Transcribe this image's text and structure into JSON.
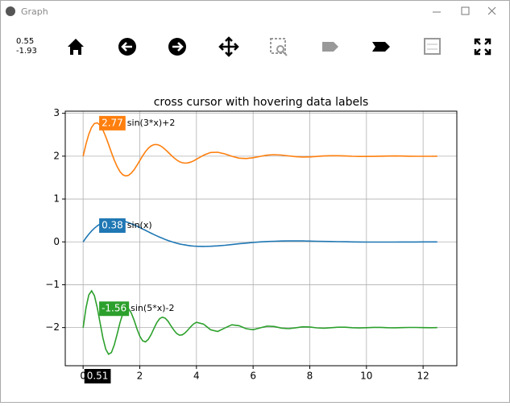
{
  "window": {
    "title": "Graph"
  },
  "status": {
    "x": "0.55",
    "y": "-1.93"
  },
  "chart_data": {
    "type": "line",
    "title": "cross cursor with hovering data labels",
    "x": [
      0,
      0.1,
      0.2,
      0.3,
      0.4,
      0.5,
      0.6,
      0.7,
      0.8,
      0.9,
      1,
      1.1,
      1.2,
      1.3,
      1.4,
      1.5,
      1.6,
      1.7,
      1.8,
      1.9,
      2,
      2.1,
      2.2,
      2.3,
      2.4,
      2.5,
      2.6,
      2.7,
      2.8,
      2.9,
      3,
      3.1,
      3.2,
      3.3,
      3.4,
      3.5,
      3.6,
      3.7,
      3.8,
      3.9,
      4,
      4.25,
      4.5,
      4.75,
      5,
      5.25,
      5.5,
      5.75,
      6,
      6.25,
      6.5,
      6.75,
      7,
      7.25,
      7.5,
      7.75,
      8,
      8.25,
      8.5,
      8.75,
      9,
      9.25,
      9.5,
      9.75,
      10,
      10.25,
      10.5,
      10.75,
      11,
      11.25,
      11.5,
      11.75,
      12,
      12.25,
      12.5
    ],
    "series": [
      {
        "name": "sin(x)",
        "color": "#1f77b4",
        "values": [
          0,
          0.095,
          0.18,
          0.254,
          0.319,
          0.373,
          0.418,
          0.454,
          0.481,
          0.499,
          0.51,
          0.514,
          0.511,
          0.503,
          0.489,
          0.471,
          0.449,
          0.424,
          0.396,
          0.366,
          0.335,
          0.302,
          0.269,
          0.236,
          0.203,
          0.171,
          0.14,
          0.111,
          0.083,
          0.056,
          0.031,
          0.009,
          -0.012,
          -0.03,
          -0.047,
          -0.061,
          -0.073,
          -0.083,
          -0.092,
          -0.098,
          -0.102,
          -0.107,
          -0.103,
          -0.093,
          -0.079,
          -0.062,
          -0.045,
          -0.029,
          -0.014,
          -0.001,
          0.008,
          0.015,
          0.02,
          0.022,
          0.022,
          0.021,
          0.018,
          0.015,
          0.011,
          0.008,
          0.005,
          0.002,
          -0.001,
          -0.002,
          -0.004,
          -0.004,
          -0.005,
          -0.004,
          -0.004,
          -0.003,
          -0.003,
          -0.002,
          -0.001,
          -0.001,
          0
        ]
      },
      {
        "name": "sin(3*x)+2",
        "color": "#ff7f0e",
        "values": [
          2,
          2.281,
          2.511,
          2.674,
          2.763,
          2.777,
          2.721,
          2.608,
          2.453,
          2.273,
          2.086,
          1.909,
          1.757,
          1.641,
          1.567,
          1.538,
          1.552,
          1.604,
          1.686,
          1.787,
          1.897,
          2.006,
          2.104,
          2.183,
          2.239,
          2.269,
          2.272,
          2.251,
          2.211,
          2.156,
          2.092,
          2.026,
          1.965,
          1.912,
          1.872,
          1.847,
          1.838,
          1.844,
          1.862,
          1.891,
          1.927,
          2.022,
          2.085,
          2.092,
          2.053,
          1.997,
          1.954,
          1.944,
          1.963,
          1.996,
          2.023,
          2.034,
          2.025,
          2.006,
          1.989,
          1.98,
          1.983,
          1.994,
          2.005,
          2.011,
          2.011,
          2.005,
          1.998,
          1.994,
          1.993,
          1.996,
          2,
          2.003,
          2.004,
          2.003,
          2,
          1.998,
          1.998,
          1.998,
          2
        ]
      },
      {
        "name": "sin(5*x)-2",
        "color": "#2ca02c",
        "values": [
          -2,
          -1.544,
          -1.239,
          -1.141,
          -1.256,
          -1.534,
          -1.895,
          -2.247,
          -2.507,
          -2.623,
          -2.582,
          -2.407,
          -2.153,
          -1.888,
          -1.674,
          -1.557,
          -1.555,
          -1.659,
          -1.832,
          -2.029,
          -2.2,
          -2.308,
          -2.333,
          -2.277,
          -2.162,
          -2.019,
          -1.885,
          -1.792,
          -1.756,
          -1.781,
          -1.855,
          -1.959,
          -2.058,
          -2.137,
          -2.176,
          -2.17,
          -2.124,
          -2.053,
          -1.978,
          -1.914,
          -1.876,
          -1.919,
          -2.051,
          -2.091,
          -2.011,
          -1.935,
          -1.955,
          -2.026,
          -2.049,
          -2.007,
          -1.966,
          -1.975,
          -2.013,
          -2.026,
          -2.005,
          -1.982,
          -1.986,
          -2.006,
          -2.014,
          -2.003,
          -1.991,
          -1.992,
          -2.003,
          -2.008,
          -2.002,
          -1.995,
          -1.996,
          -2.002,
          -2.004,
          -2.001,
          -1.997,
          -1.998,
          -2.001,
          -2.002,
          -2.001
        ]
      }
    ],
    "xlim": [
      -0.63,
      13.19
    ],
    "ylim": [
      -2.89,
      3.05
    ],
    "xticks": [
      0,
      2,
      4,
      6,
      8,
      10,
      12
    ],
    "yticks": [
      {
        "value": -2,
        "label": "−2"
      },
      {
        "value": -1,
        "label": "−1"
      },
      0,
      1,
      2,
      3
    ],
    "grid": true,
    "cursor_x": 0.51,
    "cursor_values": [
      0.38,
      2.77,
      -1.56
    ]
  }
}
